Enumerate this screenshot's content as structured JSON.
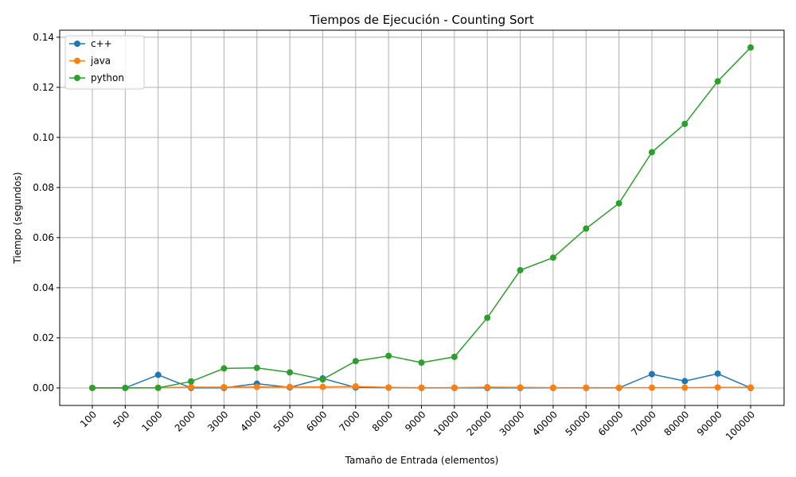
{
  "chart_data": {
    "type": "line",
    "title": "Tiempos de Ejecución - Counting Sort",
    "xlabel": "Tamaño de Entrada (elementos)",
    "ylabel": "Tiempo (segundos)",
    "categories": [
      "100",
      "500",
      "1000",
      "2000",
      "3000",
      "4000",
      "5000",
      "6000",
      "7000",
      "8000",
      "9000",
      "10000",
      "20000",
      "30000",
      "40000",
      "50000",
      "60000",
      "70000",
      "80000",
      "90000",
      "100000"
    ],
    "yticks": [
      "0.00",
      "0.02",
      "0.04",
      "0.06",
      "0.08",
      "0.10",
      "0.12",
      "0.14"
    ],
    "ylim": [
      -0.007,
      0.1428
    ],
    "grid": true,
    "legend_position": "top-left",
    "series": [
      {
        "name": "c++",
        "color": "#1f77b4",
        "values": [
          0.0,
          0.0,
          0.0052,
          0.0,
          0.0,
          0.0017,
          0.0002,
          0.0038,
          0.0002,
          0.0001,
          0.0,
          0.0,
          0.0,
          0.0,
          0.0,
          0.0,
          0.0,
          0.0055,
          0.0027,
          0.0057,
          0.0
        ]
      },
      {
        "name": "java",
        "color": "#ff7f0e",
        "values": [
          0.0,
          0.0,
          0.0001,
          0.0003,
          0.0003,
          0.0004,
          0.0004,
          0.0004,
          0.0006,
          0.0002,
          0.0001,
          0.0001,
          0.0003,
          0.0002,
          0.0001,
          0.0001,
          0.0001,
          0.0001,
          0.0001,
          0.0002,
          0.0002
        ]
      },
      {
        "name": "python",
        "color": "#2ca02c",
        "values": [
          0.0,
          0.0,
          0.0,
          0.0026,
          0.0078,
          0.008,
          0.0062,
          0.0034,
          0.0107,
          0.0128,
          0.0101,
          0.0124,
          0.028,
          0.047,
          0.052,
          0.0636,
          0.0737,
          0.0941,
          0.1054,
          0.1224,
          0.1359
        ]
      }
    ]
  }
}
